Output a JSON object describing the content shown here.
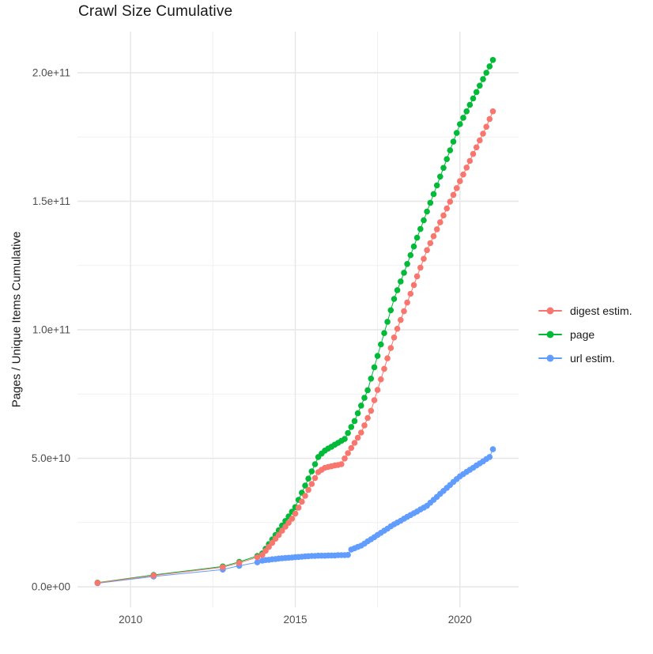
{
  "chart_data": {
    "type": "scatter",
    "title": "Crawl Size Cumulative",
    "xlabel": "",
    "ylabel": "Pages / Unique Items Cumulative",
    "value_scale_note": "point values are in billions (1e9) of pages / unique items",
    "grid": true,
    "legend_position": "right",
    "style": {
      "background": "#ffffff",
      "grid_major_color": "#e6e6e6",
      "grid_minor_color": "#f1f1f1",
      "tick_label_color": "#4d4d4d"
    },
    "x_axis": {
      "range": [
        2008.39,
        2021.78
      ],
      "ticks": [
        {
          "value": 2010,
          "label": "2010"
        },
        {
          "value": 2015,
          "label": "2015"
        },
        {
          "value": 2020,
          "label": "2020"
        }
      ],
      "minor": [
        2012.5,
        2017.5
      ]
    },
    "y_axis": {
      "range": [
        -8,
        216
      ],
      "ticks": [
        {
          "value": 0,
          "label": "0.0e+00"
        },
        {
          "value": 50,
          "label": "5.0e+10"
        },
        {
          "value": 100,
          "label": "1.0e+11"
        },
        {
          "value": 150,
          "label": "1.5e+11"
        },
        {
          "value": 200,
          "label": "2.0e+11"
        }
      ],
      "minor": [
        25,
        75,
        125,
        175
      ]
    },
    "draw_order": [
      2,
      1,
      0
    ],
    "series": [
      {
        "name": "digest estim.",
        "id": "digest-estim",
        "color": "#F8766D",
        "points": [
          [
            2009,
            1.5
          ],
          [
            2010.7,
            4.4
          ],
          [
            2012.8,
            7.6
          ],
          [
            2013.3,
            9.3
          ],
          [
            2013.85,
            11.5
          ],
          [
            2014,
            12.4
          ],
          [
            2014.1,
            14
          ],
          [
            2014.2,
            15.5
          ],
          [
            2014.3,
            17.1
          ],
          [
            2014.4,
            18.7
          ],
          [
            2014.5,
            20.2
          ],
          [
            2014.6,
            21.8
          ],
          [
            2014.7,
            23.4
          ],
          [
            2014.8,
            24.9
          ],
          [
            2014.9,
            26.5
          ],
          [
            2015,
            28.5
          ],
          [
            2015.1,
            30.8
          ],
          [
            2015.2,
            33.1
          ],
          [
            2015.3,
            35.4
          ],
          [
            2015.4,
            37.7
          ],
          [
            2015.5,
            40
          ],
          [
            2015.6,
            42.3
          ],
          [
            2015.7,
            44.6
          ],
          [
            2015.8,
            45.5
          ],
          [
            2015.9,
            46.3
          ],
          [
            2016,
            46.6
          ],
          [
            2016.1,
            46.9
          ],
          [
            2016.2,
            47.2
          ],
          [
            2016.3,
            47.4
          ],
          [
            2016.4,
            47.7
          ],
          [
            2016.5,
            49.9
          ],
          [
            2016.6,
            52
          ],
          [
            2016.7,
            54
          ],
          [
            2016.8,
            56
          ],
          [
            2016.9,
            58
          ],
          [
            2017,
            60
          ],
          [
            2017.1,
            62.8
          ],
          [
            2017.2,
            65.7
          ],
          [
            2017.3,
            68.5
          ],
          [
            2017.4,
            72.6
          ],
          [
            2017.5,
            76.6
          ],
          [
            2017.6,
            80.7
          ],
          [
            2017.7,
            84.8
          ],
          [
            2017.8,
            88.9
          ],
          [
            2017.9,
            92.9
          ],
          [
            2018,
            97
          ],
          [
            2018.1,
            100.4
          ],
          [
            2018.2,
            103.8
          ],
          [
            2018.3,
            107.2
          ],
          [
            2018.4,
            110.6
          ],
          [
            2018.5,
            114
          ],
          [
            2018.6,
            117.4
          ],
          [
            2018.7,
            120.8
          ],
          [
            2018.8,
            124.2
          ],
          [
            2018.9,
            127.6
          ],
          [
            2019,
            131
          ],
          [
            2019.1,
            133.7
          ],
          [
            2019.2,
            136.4
          ],
          [
            2019.3,
            139.1
          ],
          [
            2019.4,
            141.8
          ],
          [
            2019.5,
            144.5
          ],
          [
            2019.6,
            147.2
          ],
          [
            2019.7,
            149.8
          ],
          [
            2019.8,
            152.5
          ],
          [
            2019.9,
            155.1
          ],
          [
            2020,
            157.8
          ],
          [
            2020.1,
            160.4
          ],
          [
            2020.2,
            163.1
          ],
          [
            2020.3,
            165.7
          ],
          [
            2020.4,
            168.4
          ],
          [
            2020.5,
            171
          ],
          [
            2020.6,
            173.7
          ],
          [
            2020.7,
            176.3
          ],
          [
            2020.8,
            179
          ],
          [
            2020.9,
            182
          ],
          [
            2021,
            185
          ]
        ]
      },
      {
        "name": "page",
        "id": "page",
        "color": "#00BA38",
        "points": [
          [
            2009,
            1.6
          ],
          [
            2010.7,
            4.6
          ],
          [
            2012.8,
            7.9
          ],
          [
            2013.3,
            9.7
          ],
          [
            2013.85,
            12
          ],
          [
            2014,
            13
          ],
          [
            2014.1,
            14.8
          ],
          [
            2014.2,
            16.6
          ],
          [
            2014.3,
            18.4
          ],
          [
            2014.4,
            20.2
          ],
          [
            2014.5,
            22
          ],
          [
            2014.6,
            23.8
          ],
          [
            2014.7,
            25.6
          ],
          [
            2014.8,
            27.4
          ],
          [
            2014.9,
            29.2
          ],
          [
            2015,
            31
          ],
          [
            2015.1,
            33.8
          ],
          [
            2015.2,
            36.6
          ],
          [
            2015.3,
            39.4
          ],
          [
            2015.4,
            42.1
          ],
          [
            2015.5,
            44.9
          ],
          [
            2015.6,
            47.7
          ],
          [
            2015.7,
            50.5
          ],
          [
            2015.8,
            51.8
          ],
          [
            2015.9,
            53
          ],
          [
            2016,
            53.8
          ],
          [
            2016.1,
            54.5
          ],
          [
            2016.2,
            55.3
          ],
          [
            2016.3,
            56
          ],
          [
            2016.4,
            56.8
          ],
          [
            2016.5,
            57.5
          ],
          [
            2016.6,
            59.8
          ],
          [
            2016.7,
            62.2
          ],
          [
            2016.8,
            64.5
          ],
          [
            2016.9,
            67.5
          ],
          [
            2017,
            70.5
          ],
          [
            2017.1,
            73.5
          ],
          [
            2017.2,
            76.5
          ],
          [
            2017.3,
            81
          ],
          [
            2017.4,
            85.4
          ],
          [
            2017.5,
            89.8
          ],
          [
            2017.6,
            94.3
          ],
          [
            2017.7,
            98.7
          ],
          [
            2017.8,
            103.1
          ],
          [
            2017.9,
            107.6
          ],
          [
            2018,
            112
          ],
          [
            2018.1,
            115.4
          ],
          [
            2018.2,
            118.8
          ],
          [
            2018.3,
            122.2
          ],
          [
            2018.4,
            125.6
          ],
          [
            2018.5,
            129
          ],
          [
            2018.6,
            132.4
          ],
          [
            2018.7,
            135.8
          ],
          [
            2018.8,
            139.2
          ],
          [
            2018.9,
            142.6
          ],
          [
            2019,
            146
          ],
          [
            2019.1,
            149.4
          ],
          [
            2019.2,
            152.8
          ],
          [
            2019.3,
            156.2
          ],
          [
            2019.4,
            159.6
          ],
          [
            2019.5,
            163
          ],
          [
            2019.6,
            166.4
          ],
          [
            2019.7,
            169.8
          ],
          [
            2019.8,
            173.2
          ],
          [
            2019.9,
            176.6
          ],
          [
            2020,
            180
          ],
          [
            2020.1,
            182.5
          ],
          [
            2020.2,
            185
          ],
          [
            2020.3,
            187.5
          ],
          [
            2020.4,
            190
          ],
          [
            2020.5,
            192.5
          ],
          [
            2020.6,
            195
          ],
          [
            2020.7,
            197.5
          ],
          [
            2020.8,
            200
          ],
          [
            2020.9,
            202.5
          ],
          [
            2021,
            205
          ]
        ]
      },
      {
        "name": "url estim.",
        "id": "url-estim",
        "color": "#619CFF",
        "points": [
          [
            2009,
            1.4
          ],
          [
            2010.7,
            4
          ],
          [
            2012.8,
            6.7
          ],
          [
            2013.3,
            8.2
          ],
          [
            2013.85,
            9.5
          ],
          [
            2014,
            10.2
          ],
          [
            2014.1,
            10.4
          ],
          [
            2014.2,
            10.5
          ],
          [
            2014.3,
            10.7
          ],
          [
            2014.4,
            10.8
          ],
          [
            2014.5,
            11
          ],
          [
            2014.6,
            11.1
          ],
          [
            2014.7,
            11.2
          ],
          [
            2014.8,
            11.3
          ],
          [
            2014.9,
            11.4
          ],
          [
            2015,
            11.5
          ],
          [
            2015.1,
            11.6
          ],
          [
            2015.2,
            11.7
          ],
          [
            2015.3,
            11.8
          ],
          [
            2015.4,
            11.9
          ],
          [
            2015.5,
            12
          ],
          [
            2015.6,
            12
          ],
          [
            2015.7,
            12.1
          ],
          [
            2015.8,
            12.1
          ],
          [
            2015.9,
            12.1
          ],
          [
            2016,
            12.2
          ],
          [
            2016.1,
            12.2
          ],
          [
            2016.2,
            12.2
          ],
          [
            2016.3,
            12.3
          ],
          [
            2016.4,
            12.3
          ],
          [
            2016.5,
            12.3
          ],
          [
            2016.6,
            12.4
          ],
          [
            2016.7,
            14.5
          ],
          [
            2016.8,
            15
          ],
          [
            2016.9,
            15.5
          ],
          [
            2017,
            16
          ],
          [
            2017.1,
            16.8
          ],
          [
            2017.2,
            17.7
          ],
          [
            2017.3,
            18.5
          ],
          [
            2017.4,
            19.3
          ],
          [
            2017.5,
            20.2
          ],
          [
            2017.6,
            21
          ],
          [
            2017.7,
            21.8
          ],
          [
            2017.8,
            22.6
          ],
          [
            2017.9,
            23.5
          ],
          [
            2018,
            24.3
          ],
          [
            2018.1,
            25
          ],
          [
            2018.2,
            25.7
          ],
          [
            2018.3,
            26.5
          ],
          [
            2018.4,
            27.2
          ],
          [
            2018.5,
            27.9
          ],
          [
            2018.6,
            28.6
          ],
          [
            2018.7,
            29.3
          ],
          [
            2018.8,
            30.1
          ],
          [
            2018.9,
            30.8
          ],
          [
            2019,
            31.5
          ],
          [
            2019.1,
            32.7
          ],
          [
            2019.2,
            33.8
          ],
          [
            2019.3,
            35
          ],
          [
            2019.4,
            36.2
          ],
          [
            2019.5,
            37.3
          ],
          [
            2019.6,
            38.5
          ],
          [
            2019.7,
            39.6
          ],
          [
            2019.8,
            40.8
          ],
          [
            2019.9,
            41.9
          ],
          [
            2020,
            43
          ],
          [
            2020.1,
            43.8
          ],
          [
            2020.2,
            44.7
          ],
          [
            2020.3,
            45.5
          ],
          [
            2020.4,
            46.3
          ],
          [
            2020.5,
            47.2
          ],
          [
            2020.6,
            48
          ],
          [
            2020.7,
            48.8
          ],
          [
            2020.8,
            49.7
          ],
          [
            2020.9,
            50.5
          ],
          [
            2021,
            53.5
          ]
        ]
      }
    ]
  }
}
